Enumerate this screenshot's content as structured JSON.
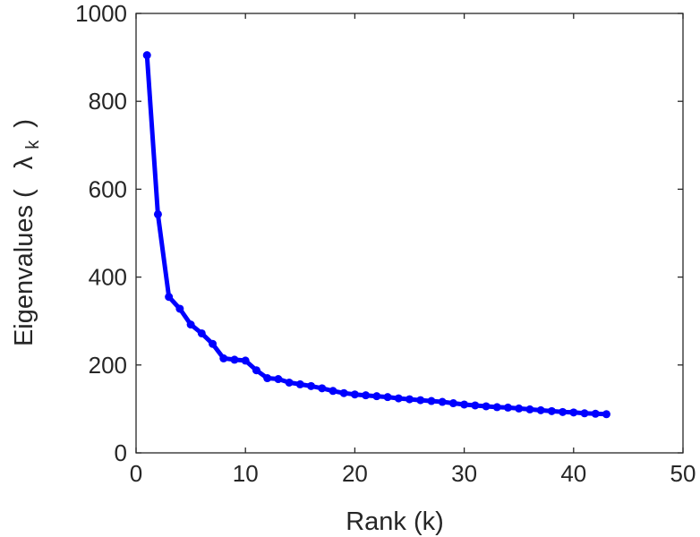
{
  "chart_data": {
    "type": "line",
    "xlabel": "Rank (k)",
    "ylabel_prefix": "Eigenvalues (",
    "ylabel_symbol": "λ",
    "ylabel_subscript": "k",
    "ylabel_suffix": ")",
    "xlim": [
      0,
      50
    ],
    "ylim": [
      0,
      1000
    ],
    "xticks": [
      "0",
      "10",
      "20",
      "30",
      "40",
      "50"
    ],
    "yticks": [
      "0",
      "200",
      "400",
      "600",
      "800",
      "1000"
    ],
    "grid": false,
    "color": "#0000ff",
    "series": [
      {
        "x": [
          1,
          2,
          3,
          4,
          5,
          6,
          7,
          8,
          9,
          10,
          11,
          12,
          13,
          14,
          15,
          16,
          17,
          18,
          19,
          20,
          21,
          22,
          23,
          24,
          25,
          26,
          27,
          28,
          29,
          30,
          31,
          32,
          33,
          34,
          35,
          36,
          37,
          38,
          39,
          40,
          41,
          42,
          43
        ],
        "values": [
          905,
          543,
          355,
          328,
          292,
          272,
          248,
          215,
          212,
          210,
          188,
          170,
          168,
          160,
          156,
          152,
          147,
          141,
          136,
          133,
          131,
          129,
          127,
          124,
          122,
          120,
          118,
          116,
          113,
          110,
          108,
          106,
          104,
          103,
          101,
          99,
          97,
          95,
          93,
          92,
          90,
          89,
          88
        ]
      }
    ]
  }
}
